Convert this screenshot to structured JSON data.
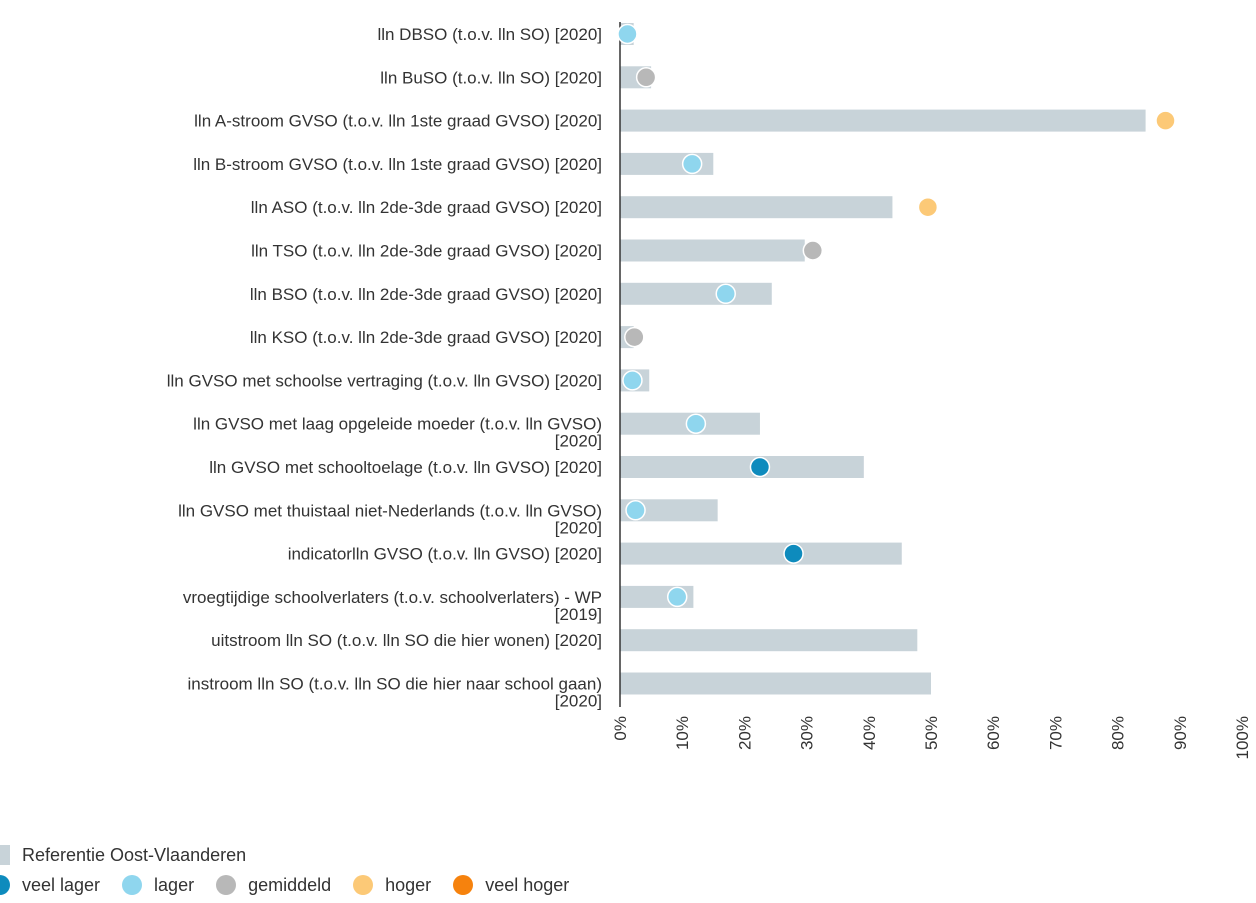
{
  "chart_data": {
    "type": "bar",
    "orientation": "horizontal",
    "xlim": [
      0,
      100
    ],
    "x_ticks": [
      0,
      10,
      20,
      30,
      40,
      50,
      60,
      70,
      80,
      90,
      100
    ],
    "x_tick_labels": [
      "0%",
      "10%",
      "20%",
      "30%",
      "40%",
      "50%",
      "60%",
      "70%",
      "80%",
      "90%",
      "100%"
    ],
    "categories": [
      {
        "label_lines": [
          "lln DBSO (t.o.v. lln SO) [2020]"
        ],
        "reference": 2.2,
        "value": 1.2,
        "class": "lager"
      },
      {
        "label_lines": [
          "lln BuSO (t.o.v. lln SO) [2020]"
        ],
        "reference": 5.0,
        "value": 4.2,
        "class": "gemiddeld"
      },
      {
        "label_lines": [
          "lln A-stroom GVSO (t.o.v. lln 1ste graad GVSO) [2020]"
        ],
        "reference": 84.5,
        "value": 87.7,
        "class": "hoger"
      },
      {
        "label_lines": [
          "lln B-stroom GVSO (t.o.v. lln 1ste graad GVSO) [2020]"
        ],
        "reference": 15.0,
        "value": 11.6,
        "class": "lager"
      },
      {
        "label_lines": [
          "lln ASO (t.o.v. lln 2de-3de graad GVSO) [2020]"
        ],
        "reference": 43.8,
        "value": 49.5,
        "class": "hoger"
      },
      {
        "label_lines": [
          "lln TSO (t.o.v. lln 2de-3de graad GVSO) [2020]"
        ],
        "reference": 29.7,
        "value": 31.0,
        "class": "gemiddeld"
      },
      {
        "label_lines": [
          "lln BSO (t.o.v. lln 2de-3de graad GVSO) [2020]"
        ],
        "reference": 24.4,
        "value": 17.0,
        "class": "lager"
      },
      {
        "label_lines": [
          "lln KSO (t.o.v. lln 2de-3de graad GVSO) [2020]"
        ],
        "reference": 2.2,
        "value": 2.3,
        "class": "gemiddeld"
      },
      {
        "label_lines": [
          "lln GVSO met schoolse vertraging (t.o.v. lln GVSO) [2020]"
        ],
        "reference": 4.7,
        "value": 2.0,
        "class": "lager"
      },
      {
        "label_lines": [
          "lln GVSO met laag opgeleide moeder (t.o.v. lln GVSO)",
          "[2020]"
        ],
        "reference": 22.5,
        "value": 12.2,
        "class": "lager"
      },
      {
        "label_lines": [
          "lln GVSO met schooltoelage (t.o.v. lln GVSO) [2020]"
        ],
        "reference": 39.2,
        "value": 22.5,
        "class": "veel lager"
      },
      {
        "label_lines": [
          "lln GVSO met thuistaal niet-Nederlands (t.o.v. lln GVSO)",
          "[2020]"
        ],
        "reference": 15.7,
        "value": 2.5,
        "class": "lager"
      },
      {
        "label_lines": [
          "indicatorlln GVSO (t.o.v. lln GVSO) [2020]"
        ],
        "reference": 45.3,
        "value": 27.9,
        "class": "veel lager"
      },
      {
        "label_lines": [
          "vroegtijdige schoolverlaters (t.o.v. schoolverlaters) - WP",
          "[2019]"
        ],
        "reference": 11.8,
        "value": 9.2,
        "class": "lager"
      },
      {
        "label_lines": [
          "uitstroom lln SO (t.o.v. lln SO die hier wonen) [2020]"
        ],
        "reference": 47.8,
        "value": null,
        "class": null
      },
      {
        "label_lines": [
          "instroom lln SO (t.o.v. lln SO die hier naar school gaan)",
          "[2020]"
        ],
        "reference": 50.0,
        "value": null,
        "class": null
      }
    ],
    "legend": {
      "reference_label": "Referentie Oost-Vlaanderen",
      "reference_color": "#c8d3d9",
      "classes": [
        {
          "key": "veel lager",
          "label": "veel lager",
          "color": "#0e8bbd"
        },
        {
          "key": "lager",
          "label": "lager",
          "color": "#8fd6ee"
        },
        {
          "key": "gemiddeld",
          "label": "gemiddeld",
          "color": "#b8b8b8"
        },
        {
          "key": "hoger",
          "label": "hoger",
          "color": "#fcc977"
        },
        {
          "key": "veel hoger",
          "label": "veel hoger",
          "color": "#f6820d"
        }
      ],
      "placement": "bottom-left"
    },
    "grid": false
  }
}
